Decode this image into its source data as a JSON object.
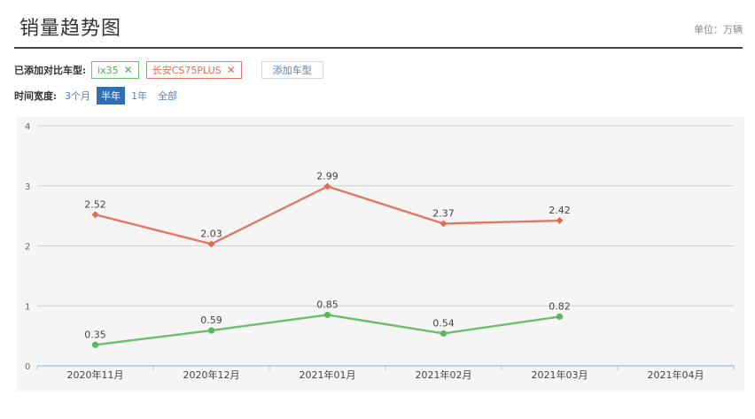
{
  "header": {
    "title": "销量趋势图",
    "unit": "单位：万辆"
  },
  "compare": {
    "label": "已添加对比车型:",
    "tags": [
      {
        "label": "ix35",
        "color": "#4caf50"
      },
      {
        "label": "长安CS75PLUS",
        "color": "#e06b55"
      }
    ],
    "add_button": "添加车型"
  },
  "time_span": {
    "label": "时间宽度:",
    "options": [
      "3个月",
      "半年",
      "1年",
      "全部"
    ],
    "active": "半年"
  },
  "chart_data": {
    "type": "line",
    "categories": [
      "2020年11月",
      "2020年12月",
      "2021年01月",
      "2021年02月",
      "2021年03月",
      "2021年04月"
    ],
    "ylim": [
      0,
      4
    ],
    "yticks": [
      0,
      1,
      2,
      3,
      4
    ],
    "grid": true,
    "series": [
      {
        "name": "长安CS75PLUS",
        "color": "#e06b55",
        "marker": "diamond",
        "values": [
          2.52,
          2.03,
          2.99,
          2.37,
          2.42,
          null
        ]
      },
      {
        "name": "ix35",
        "color": "#5cb85c",
        "marker": "circle",
        "values": [
          0.35,
          0.59,
          0.85,
          0.54,
          0.82,
          null
        ]
      }
    ]
  }
}
